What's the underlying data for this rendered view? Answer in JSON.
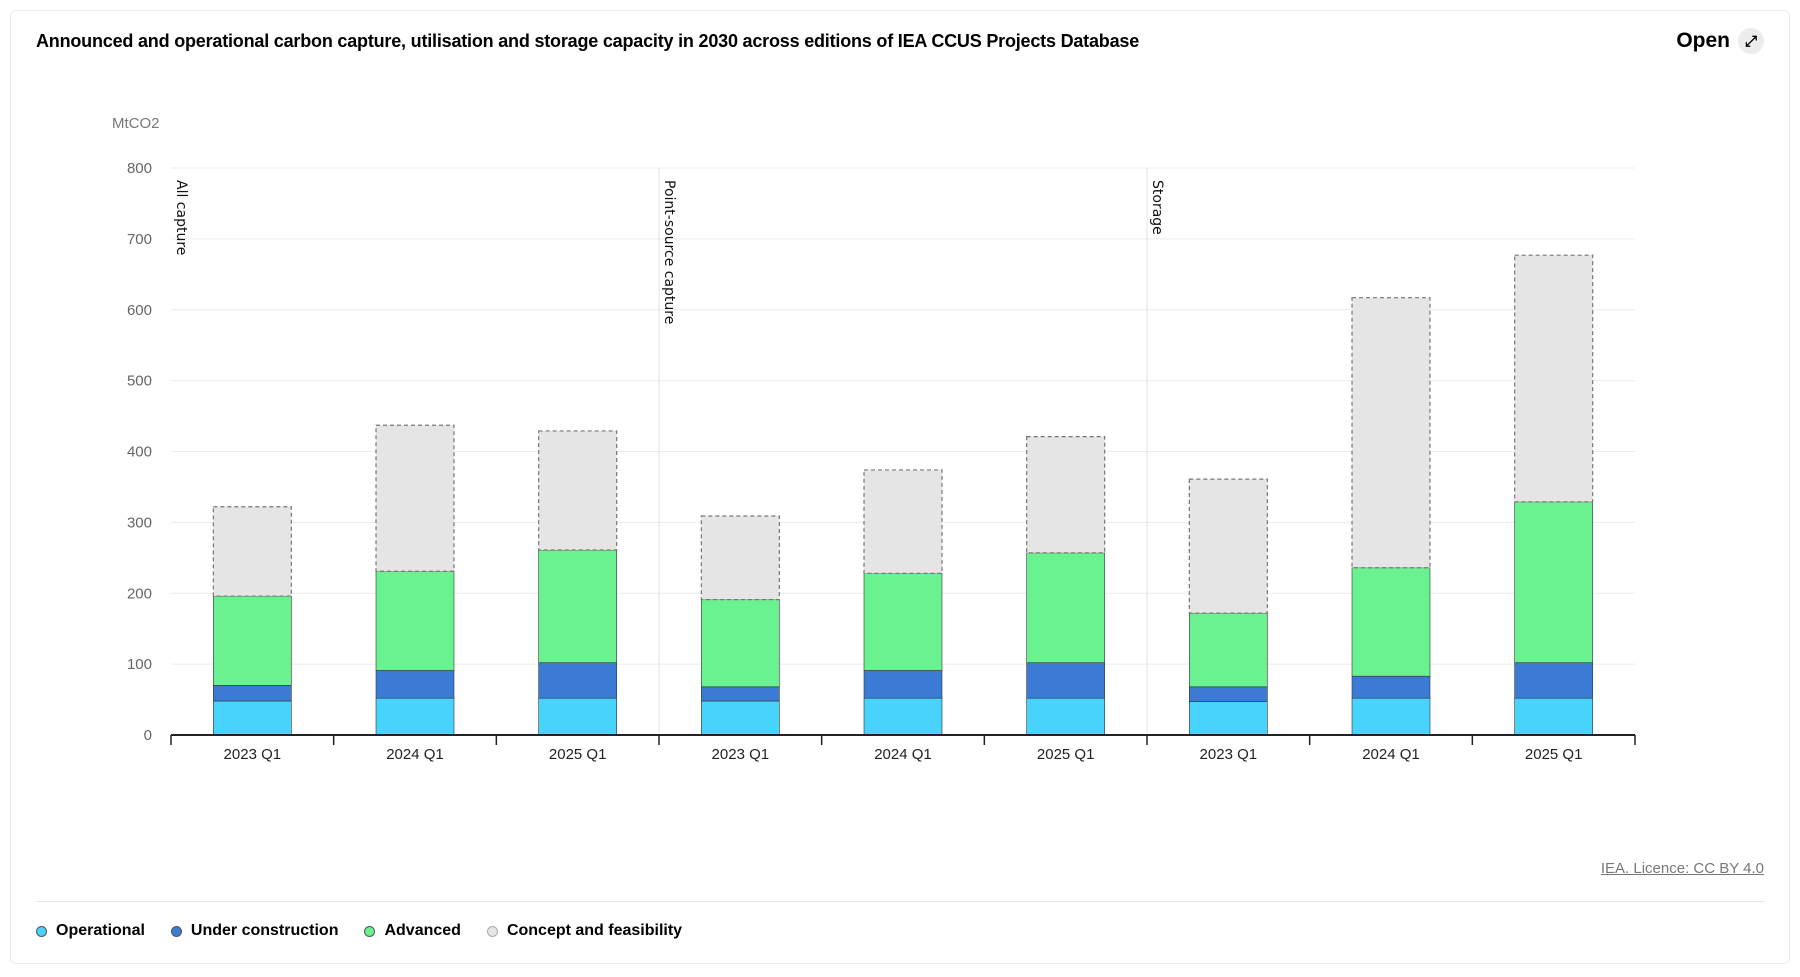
{
  "header": {
    "title": "Announced and operational carbon capture, utilisation and storage capacity in 2030 across editions of IEA CCUS Projects Database",
    "open_label": "Open",
    "open_icon": "expand-arrow-icon"
  },
  "licence": "IEA. Licence: CC BY 4.0",
  "chart_data": {
    "type": "bar",
    "stacked": true,
    "title": "Announced and operational carbon capture, utilisation and storage capacity in 2030 across editions of IEA CCUS Projects Database",
    "ylabel": "MtCO2",
    "ylim": [
      0,
      800
    ],
    "yticks": [
      0,
      100,
      200,
      300,
      400,
      500,
      600,
      700,
      800
    ],
    "grid": true,
    "legend_position": "bottom-left",
    "groups": [
      "All capture",
      "Point-source capture",
      "Storage"
    ],
    "categories": [
      "2023 Q1",
      "2024 Q1",
      "2025 Q1",
      "2023 Q1",
      "2024 Q1",
      "2025 Q1",
      "2023 Q1",
      "2024 Q1",
      "2025 Q1"
    ],
    "series": [
      {
        "name": "Operational",
        "color": "#47d3fb",
        "values": [
          48,
          52,
          52,
          48,
          52,
          52,
          47,
          52,
          52
        ]
      },
      {
        "name": "Under construction",
        "color": "#3b7bd6",
        "values": [
          22,
          39,
          50,
          20,
          39,
          50,
          21,
          31,
          50
        ]
      },
      {
        "name": "Advanced",
        "color": "#6af290",
        "values": [
          126,
          140,
          159,
          123,
          137,
          155,
          104,
          153,
          227
        ]
      },
      {
        "name": "Concept and feasibility",
        "color": "#e5e5e5",
        "values": [
          126,
          206,
          168,
          118,
          146,
          164,
          189,
          381,
          348
        ]
      }
    ]
  }
}
